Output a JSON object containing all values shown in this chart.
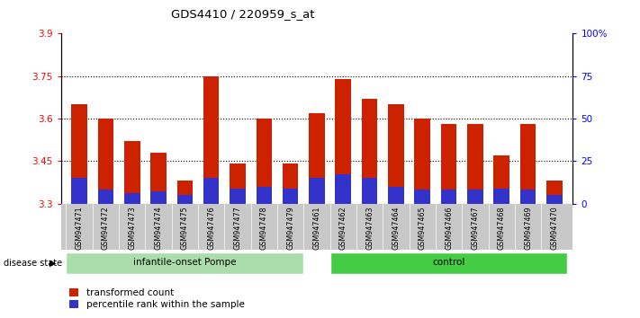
{
  "title": "GDS4410 / 220959_s_at",
  "samples": [
    "GSM947471",
    "GSM947472",
    "GSM947473",
    "GSM947474",
    "GSM947475",
    "GSM947476",
    "GSM947477",
    "GSM947478",
    "GSM947479",
    "GSM947461",
    "GSM947462",
    "GSM947463",
    "GSM947464",
    "GSM947465",
    "GSM947466",
    "GSM947467",
    "GSM947468",
    "GSM947469",
    "GSM947470"
  ],
  "red_values": [
    3.65,
    3.6,
    3.52,
    3.48,
    3.38,
    3.75,
    3.44,
    3.6,
    3.44,
    3.62,
    3.74,
    3.67,
    3.65,
    3.6,
    3.58,
    3.58,
    3.47,
    3.58,
    3.38
  ],
  "blue_pct": [
    15,
    8,
    6,
    7,
    5,
    15,
    9,
    10,
    9,
    15,
    17,
    15,
    10,
    8,
    8,
    8,
    9,
    8,
    5
  ],
  "ymin": 3.3,
  "ymax": 3.9,
  "yticks": [
    3.3,
    3.45,
    3.6,
    3.75,
    3.9
  ],
  "y2ticks": [
    0,
    25,
    50,
    75,
    100
  ],
  "bar_color": "#CC2200",
  "blue_color": "#3333CC",
  "bar_width": 0.6,
  "base_value": 3.3,
  "infantile_color": "#AADDAA",
  "control_color": "#44CC44",
  "legend_labels": [
    "transformed count",
    "percentile rank within the sample"
  ],
  "disease_state_label": "disease state",
  "infantile_label": "infantile-onset Pompe",
  "control_label": "control",
  "n_infantile": 9,
  "n_control": 10
}
